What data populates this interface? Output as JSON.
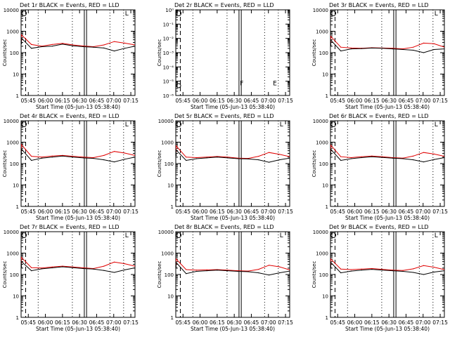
{
  "figure": {
    "colors": {
      "events": "#000000",
      "lld": "#e00000",
      "background": "#ffffff"
    },
    "panel_grid": "3x3"
  },
  "chart_data": [
    {
      "type": "line",
      "panel": "Det 1r",
      "title": "Det 1r BLACK = Events, RED = LLD",
      "xlabel": "Start Time (05-Jun-13 05:38:40)",
      "ylabel": "Counts/sec",
      "x_ticks": [
        "05:45",
        "06:00",
        "06:15",
        "06:30",
        "06:45",
        "07:00",
        "07:15"
      ],
      "x_minutes": [
        0,
        10,
        20,
        30,
        40,
        50,
        60,
        70,
        80,
        90,
        100,
        110
      ],
      "y_scale": "log",
      "ylim": [
        1,
        10000
      ],
      "y_ticks": [
        "1",
        "10",
        "100",
        "1000",
        "10000"
      ],
      "marker_letter": "L",
      "series": [
        {
          "name": "LLD",
          "color": "#e00000",
          "values": [
            700,
            240,
            200,
            240,
            270,
            230,
            205,
            190,
            230,
            330,
            280,
            230
          ]
        },
        {
          "name": "Events",
          "color": "#000000",
          "values": [
            500,
            160,
            190,
            200,
            250,
            210,
            190,
            180,
            165,
            120,
            160,
            200
          ]
        }
      ]
    },
    {
      "type": "line",
      "panel": "Det 2r",
      "title": "Det 2r BLACK = Events, RED = LLD",
      "xlabel": "Start Time (05-Jun-13 05:38:40)",
      "ylabel": "Counts/sec",
      "x_ticks": [
        "05:45",
        "06:00",
        "06:15",
        "06:30",
        "06:45",
        "07:00",
        "07:15"
      ],
      "y_scale": "log",
      "ylim": [
        1e-06,
        1
      ],
      "y_ticks": [
        "10⁻⁶",
        "10⁻⁵",
        "10⁻⁴",
        "10⁻³",
        "10⁻²",
        "10⁻¹",
        "10⁰"
      ],
      "marker_letters": [
        "F",
        "E"
      ],
      "series": []
    },
    {
      "type": "line",
      "panel": "Det 3r",
      "title": "Det 3r BLACK = Events, RED = LLD",
      "xlabel": "Start Time (05-Jun-13 05:38:40)",
      "ylabel": "Counts/sec",
      "x_ticks": [
        "05:45",
        "06:00",
        "06:15",
        "06:30",
        "06:45",
        "07:00",
        "07:15"
      ],
      "x_minutes": [
        0,
        10,
        20,
        30,
        40,
        50,
        60,
        70,
        80,
        90,
        100,
        110
      ],
      "y_scale": "log",
      "ylim": [
        1,
        10000
      ],
      "y_ticks": [
        "1",
        "10",
        "100",
        "1000",
        "10000"
      ],
      "marker_letter": "L",
      "series": [
        {
          "name": "LLD",
          "color": "#e00000",
          "values": [
            600,
            180,
            165,
            160,
            170,
            165,
            160,
            150,
            180,
            280,
            260,
            180
          ]
        },
        {
          "name": "Events",
          "color": "#000000",
          "values": [
            400,
            120,
            150,
            155,
            165,
            160,
            150,
            140,
            130,
            100,
            140,
            150
          ]
        }
      ]
    },
    {
      "type": "line",
      "panel": "Det 4r",
      "title": "Det 4r BLACK = Events, RED = LLD",
      "xlabel": "Start Time (05-Jun-13 05:38:40)",
      "ylabel": "Counts/sec",
      "x_ticks": [
        "05:45",
        "06:00",
        "06:15",
        "06:30",
        "06:45",
        "07:00",
        "07:15"
      ],
      "x_minutes": [
        0,
        10,
        20,
        30,
        40,
        50,
        60,
        70,
        80,
        90,
        100,
        110
      ],
      "y_scale": "log",
      "ylim": [
        1,
        10000
      ],
      "y_ticks": [
        "1",
        "10",
        "100",
        "1000",
        "10000"
      ],
      "marker_letter": "L",
      "series": [
        {
          "name": "LLD",
          "color": "#e00000",
          "values": [
            800,
            220,
            200,
            225,
            240,
            220,
            200,
            190,
            240,
            370,
            310,
            240
          ]
        },
        {
          "name": "Events",
          "color": "#000000",
          "values": [
            500,
            140,
            180,
            200,
            225,
            200,
            185,
            175,
            150,
            120,
            160,
            200
          ]
        }
      ]
    },
    {
      "type": "line",
      "panel": "Det 5r",
      "title": "Det 5r BLACK = Events, RED = LLD",
      "xlabel": "Start Time (05-Jun-13 05:38:40)",
      "ylabel": "Counts/sec",
      "x_ticks": [
        "05:45",
        "06:00",
        "06:15",
        "06:30",
        "06:45",
        "07:00",
        "07:15"
      ],
      "x_minutes": [
        0,
        10,
        20,
        30,
        40,
        50,
        60,
        70,
        80,
        90,
        100,
        110
      ],
      "y_scale": "log",
      "ylim": [
        1,
        10000
      ],
      "y_ticks": [
        "1",
        "10",
        "100",
        "1000",
        "10000"
      ],
      "marker_letter": "L",
      "series": [
        {
          "name": "LLD",
          "color": "#e00000",
          "values": [
            700,
            200,
            190,
            200,
            215,
            200,
            180,
            175,
            220,
            330,
            270,
            210
          ]
        },
        {
          "name": "Events",
          "color": "#000000",
          "values": [
            450,
            140,
            170,
            185,
            200,
            185,
            170,
            165,
            150,
            115,
            150,
            180
          ]
        }
      ]
    },
    {
      "type": "line",
      "panel": "Det 6r",
      "title": "Det 6r BLACK = Events, RED = LLD",
      "xlabel": "Start Time (05-Jun-13 05:38:40)",
      "ylabel": "Counts/sec",
      "x_ticks": [
        "05:45",
        "06:00",
        "06:15",
        "06:30",
        "06:45",
        "07:00",
        "07:15"
      ],
      "x_minutes": [
        0,
        10,
        20,
        30,
        40,
        50,
        60,
        70,
        80,
        90,
        100,
        110
      ],
      "y_scale": "log",
      "ylim": [
        1,
        10000
      ],
      "y_ticks": [
        "1",
        "10",
        "100",
        "1000",
        "10000"
      ],
      "marker_letter": "L",
      "series": [
        {
          "name": "LLD",
          "color": "#e00000",
          "values": [
            750,
            210,
            190,
            210,
            225,
            210,
            190,
            180,
            225,
            330,
            280,
            220
          ]
        },
        {
          "name": "Events",
          "color": "#000000",
          "values": [
            480,
            140,
            170,
            190,
            210,
            195,
            180,
            170,
            150,
            120,
            155,
            190
          ]
        }
      ]
    },
    {
      "type": "line",
      "panel": "Det 7r",
      "title": "Det 7r BLACK = Events, RED = LLD",
      "xlabel": "Start Time (05-Jun-13 05:38:40)",
      "ylabel": "Counts/sec",
      "x_ticks": [
        "05:45",
        "06:00",
        "06:15",
        "06:30",
        "06:45",
        "07:00",
        "07:15"
      ],
      "x_minutes": [
        0,
        10,
        20,
        30,
        40,
        50,
        60,
        70,
        80,
        90,
        100,
        110
      ],
      "y_scale": "log",
      "ylim": [
        1,
        10000
      ],
      "y_ticks": [
        "1",
        "10",
        "100",
        "1000",
        "10000"
      ],
      "marker_letter": "L",
      "series": [
        {
          "name": "LLD",
          "color": "#e00000",
          "values": [
            650,
            210,
            200,
            225,
            245,
            225,
            205,
            190,
            245,
            380,
            320,
            245
          ]
        },
        {
          "name": "Events",
          "color": "#000000",
          "values": [
            420,
            150,
            185,
            205,
            230,
            210,
            190,
            180,
            155,
            125,
            165,
            205
          ]
        }
      ]
    },
    {
      "type": "line",
      "panel": "Det 8r",
      "title": "Det 8r BLACK = Events, RED = LLD",
      "xlabel": "Start Time (05-Jun-13 05:38:40)",
      "ylabel": "Counts/sec",
      "x_ticks": [
        "05:45",
        "06:00",
        "06:15",
        "06:30",
        "06:45",
        "07:00",
        "07:15"
      ],
      "x_minutes": [
        0,
        10,
        20,
        30,
        40,
        50,
        60,
        70,
        80,
        90,
        100,
        110
      ],
      "y_scale": "log",
      "ylim": [
        1,
        10000
      ],
      "y_ticks": [
        "1",
        "10",
        "100",
        "1000",
        "10000"
      ],
      "marker_letter": "L",
      "series": [
        {
          "name": "LLD",
          "color": "#e00000",
          "values": [
            550,
            170,
            160,
            165,
            170,
            160,
            150,
            145,
            175,
            270,
            230,
            165
          ]
        },
        {
          "name": "Events",
          "color": "#000000",
          "values": [
            380,
            110,
            140,
            150,
            160,
            150,
            140,
            135,
            120,
            95,
            120,
            145
          ]
        }
      ]
    },
    {
      "type": "line",
      "panel": "Det 9r",
      "title": "Det 9r BLACK = Events, RED = LLD",
      "xlabel": "Start Time (05-Jun-13 05:38:40)",
      "ylabel": "Counts/sec",
      "x_ticks": [
        "05:45",
        "06:00",
        "06:15",
        "06:30",
        "06:45",
        "07:00",
        "07:15"
      ],
      "x_minutes": [
        0,
        10,
        20,
        30,
        40,
        50,
        60,
        70,
        80,
        90,
        100,
        110
      ],
      "y_scale": "log",
      "ylim": [
        1,
        10000
      ],
      "y_ticks": [
        "1",
        "10",
        "100",
        "1000",
        "10000"
      ],
      "marker_letter": "L",
      "series": [
        {
          "name": "LLD",
          "color": "#e00000",
          "values": [
            550,
            180,
            170,
            180,
            190,
            175,
            160,
            155,
            185,
            260,
            220,
            170
          ]
        },
        {
          "name": "Events",
          "color": "#000000",
          "values": [
            380,
            120,
            145,
            160,
            175,
            160,
            150,
            140,
            125,
            100,
            130,
            150
          ]
        }
      ]
    }
  ]
}
